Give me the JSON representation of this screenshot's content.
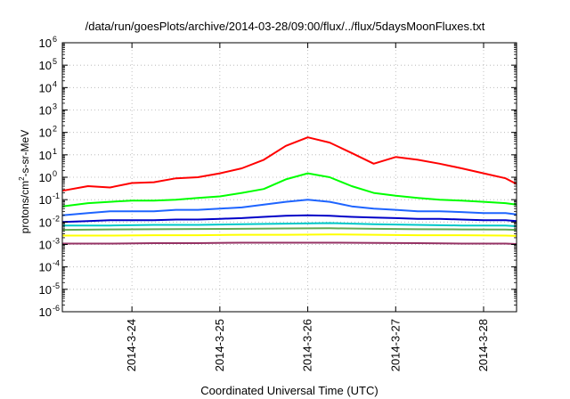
{
  "chart_data": {
    "type": "line",
    "title": "/data/run/goesPlots/archive/2014-03-28/09:00/flux/../flux/5daysMoonFluxes.txt",
    "xlabel": "Coordinated Universal Time (UTC)",
    "ylabel": {
      "prefix": "protons/cm",
      "sup": "2",
      "suffix": "-s-sr-MeV"
    },
    "y_scale": "log",
    "ylim": [
      1e-06,
      1000000.0
    ],
    "xlim": [
      "2014-03-23 05:00",
      "2014-03-28 09:00"
    ],
    "x_ticks": [
      "2014-3-24",
      "2014-3-25",
      "2014-3-26",
      "2014-3-27",
      "2014-3-28"
    ],
    "y_ticks": [
      {
        "base": "10",
        "exp": "6"
      },
      {
        "base": "10",
        "exp": "5"
      },
      {
        "base": "10",
        "exp": "4"
      },
      {
        "base": "10",
        "exp": "3"
      },
      {
        "base": "10",
        "exp": "2"
      },
      {
        "base": "10",
        "exp": "1"
      },
      {
        "base": "10",
        "exp": "0"
      },
      {
        "base": "10",
        "exp": "-1"
      },
      {
        "base": "10",
        "exp": "-2"
      },
      {
        "base": "10",
        "exp": "-3"
      },
      {
        "base": "10",
        "exp": "-4"
      },
      {
        "base": "10",
        "exp": "-5"
      },
      {
        "base": "10",
        "exp": "-6"
      }
    ],
    "grid": true,
    "series": [
      {
        "color": "#ff0000",
        "values": [
          [
            "2014-03-23 05:00",
            0.25
          ],
          [
            "2014-03-23 12:00",
            0.4
          ],
          [
            "2014-03-23 18:00",
            0.35
          ],
          [
            "2014-03-24 00:00",
            0.55
          ],
          [
            "2014-03-24 06:00",
            0.6
          ],
          [
            "2014-03-24 12:00",
            0.9
          ],
          [
            "2014-03-24 18:00",
            1.0
          ],
          [
            "2014-03-25 00:00",
            1.5
          ],
          [
            "2014-03-25 06:00",
            2.5
          ],
          [
            "2014-03-25 12:00",
            6
          ],
          [
            "2014-03-25 18:00",
            25
          ],
          [
            "2014-03-26 00:00",
            60
          ],
          [
            "2014-03-26 06:00",
            35
          ],
          [
            "2014-03-26 12:00",
            12
          ],
          [
            "2014-03-26 18:00",
            4
          ],
          [
            "2014-03-27 00:00",
            8
          ],
          [
            "2014-03-27 06:00",
            6
          ],
          [
            "2014-03-27 12:00",
            4
          ],
          [
            "2014-03-27 18:00",
            2.5
          ],
          [
            "2014-03-28 00:00",
            1.5
          ],
          [
            "2014-03-28 06:00",
            0.9
          ],
          [
            "2014-03-28 09:00",
            0.5
          ]
        ]
      },
      {
        "color": "#00ff00",
        "values": [
          [
            "2014-03-23 05:00",
            0.05
          ],
          [
            "2014-03-23 12:00",
            0.07
          ],
          [
            "2014-03-23 18:00",
            0.08
          ],
          [
            "2014-03-24 00:00",
            0.09
          ],
          [
            "2014-03-24 06:00",
            0.09
          ],
          [
            "2014-03-24 12:00",
            0.1
          ],
          [
            "2014-03-24 18:00",
            0.12
          ],
          [
            "2014-03-25 00:00",
            0.14
          ],
          [
            "2014-03-25 06:00",
            0.2
          ],
          [
            "2014-03-25 12:00",
            0.3
          ],
          [
            "2014-03-25 18:00",
            0.8
          ],
          [
            "2014-03-26 00:00",
            1.5
          ],
          [
            "2014-03-26 06:00",
            1.0
          ],
          [
            "2014-03-26 12:00",
            0.4
          ],
          [
            "2014-03-26 18:00",
            0.2
          ],
          [
            "2014-03-27 00:00",
            0.15
          ],
          [
            "2014-03-27 06:00",
            0.12
          ],
          [
            "2014-03-27 12:00",
            0.1
          ],
          [
            "2014-03-27 18:00",
            0.09
          ],
          [
            "2014-03-28 00:00",
            0.08
          ],
          [
            "2014-03-28 06:00",
            0.07
          ],
          [
            "2014-03-28 09:00",
            0.06
          ]
        ]
      },
      {
        "color": "#1e64ff",
        "values": [
          [
            "2014-03-23 05:00",
            0.02
          ],
          [
            "2014-03-23 12:00",
            0.025
          ],
          [
            "2014-03-23 18:00",
            0.03
          ],
          [
            "2014-03-24 00:00",
            0.03
          ],
          [
            "2014-03-24 06:00",
            0.03
          ],
          [
            "2014-03-24 12:00",
            0.035
          ],
          [
            "2014-03-24 18:00",
            0.035
          ],
          [
            "2014-03-25 00:00",
            0.04
          ],
          [
            "2014-03-25 06:00",
            0.045
          ],
          [
            "2014-03-25 12:00",
            0.06
          ],
          [
            "2014-03-25 18:00",
            0.08
          ],
          [
            "2014-03-26 00:00",
            0.1
          ],
          [
            "2014-03-26 06:00",
            0.08
          ],
          [
            "2014-03-26 12:00",
            0.05
          ],
          [
            "2014-03-26 18:00",
            0.04
          ],
          [
            "2014-03-27 00:00",
            0.035
          ],
          [
            "2014-03-27 06:00",
            0.03
          ],
          [
            "2014-03-27 12:00",
            0.03
          ],
          [
            "2014-03-27 18:00",
            0.028
          ],
          [
            "2014-03-28 00:00",
            0.025
          ],
          [
            "2014-03-28 06:00",
            0.025
          ],
          [
            "2014-03-28 09:00",
            0.022
          ]
        ]
      },
      {
        "color": "#0000c8",
        "values": [
          [
            "2014-03-23 05:00",
            0.01
          ],
          [
            "2014-03-23 12:00",
            0.011
          ],
          [
            "2014-03-23 18:00",
            0.012
          ],
          [
            "2014-03-24 00:00",
            0.012
          ],
          [
            "2014-03-24 06:00",
            0.012
          ],
          [
            "2014-03-24 12:00",
            0.013
          ],
          [
            "2014-03-24 18:00",
            0.013
          ],
          [
            "2014-03-25 00:00",
            0.014
          ],
          [
            "2014-03-25 06:00",
            0.015
          ],
          [
            "2014-03-25 12:00",
            0.017
          ],
          [
            "2014-03-25 18:00",
            0.019
          ],
          [
            "2014-03-26 00:00",
            0.02
          ],
          [
            "2014-03-26 06:00",
            0.019
          ],
          [
            "2014-03-26 12:00",
            0.017
          ],
          [
            "2014-03-26 18:00",
            0.016
          ],
          [
            "2014-03-27 00:00",
            0.015
          ],
          [
            "2014-03-27 06:00",
            0.014
          ],
          [
            "2014-03-27 12:00",
            0.014
          ],
          [
            "2014-03-27 18:00",
            0.013
          ],
          [
            "2014-03-28 00:00",
            0.012
          ],
          [
            "2014-03-28 06:00",
            0.012
          ],
          [
            "2014-03-28 09:00",
            0.011
          ]
        ]
      },
      {
        "color": "#00c8c8",
        "values": [
          [
            "2014-03-23 05:00",
            0.007
          ],
          [
            "2014-03-23 18:00",
            0.007
          ],
          [
            "2014-03-24 06:00",
            0.0075
          ],
          [
            "2014-03-24 18:00",
            0.0075
          ],
          [
            "2014-03-25 06:00",
            0.008
          ],
          [
            "2014-03-25 18:00",
            0.0085
          ],
          [
            "2014-03-26 06:00",
            0.009
          ],
          [
            "2014-03-26 18:00",
            0.008
          ],
          [
            "2014-03-27 06:00",
            0.0075
          ],
          [
            "2014-03-27 18:00",
            0.007
          ],
          [
            "2014-03-28 06:00",
            0.007
          ],
          [
            "2014-03-28 09:00",
            0.0065
          ]
        ]
      },
      {
        "color": "#64aa50",
        "values": [
          [
            "2014-03-23 05:00",
            0.0045
          ],
          [
            "2014-03-23 18:00",
            0.0047
          ],
          [
            "2014-03-24 06:00",
            0.0048
          ],
          [
            "2014-03-24 18:00",
            0.0049
          ],
          [
            "2014-03-25 06:00",
            0.005
          ],
          [
            "2014-03-25 18:00",
            0.0052
          ],
          [
            "2014-03-26 06:00",
            0.0053
          ],
          [
            "2014-03-26 18:00",
            0.005
          ],
          [
            "2014-03-27 06:00",
            0.0048
          ],
          [
            "2014-03-27 18:00",
            0.0047
          ],
          [
            "2014-03-28 06:00",
            0.0046
          ],
          [
            "2014-03-28 09:00",
            0.0045
          ]
        ]
      },
      {
        "color": "#ffff00",
        "values": [
          [
            "2014-03-23 05:00",
            0.0025
          ],
          [
            "2014-03-23 18:00",
            0.0025
          ],
          [
            "2014-03-24 06:00",
            0.0026
          ],
          [
            "2014-03-24 18:00",
            0.0026
          ],
          [
            "2014-03-25 06:00",
            0.0027
          ],
          [
            "2014-03-25 18:00",
            0.0027
          ],
          [
            "2014-03-26 06:00",
            0.0028
          ],
          [
            "2014-03-26 18:00",
            0.0027
          ],
          [
            "2014-03-27 06:00",
            0.0026
          ],
          [
            "2014-03-27 18:00",
            0.0026
          ],
          [
            "2014-03-28 06:00",
            0.0025
          ],
          [
            "2014-03-28 09:00",
            0.0024
          ]
        ]
      },
      {
        "color": "#963264",
        "values": [
          [
            "2014-03-23 05:00",
            0.0011
          ],
          [
            "2014-03-23 18:00",
            0.0011
          ],
          [
            "2014-03-24 06:00",
            0.00115
          ],
          [
            "2014-03-24 18:00",
            0.00115
          ],
          [
            "2014-03-25 06:00",
            0.0012
          ],
          [
            "2014-03-25 18:00",
            0.0012
          ],
          [
            "2014-03-26 06:00",
            0.0012
          ],
          [
            "2014-03-26 18:00",
            0.00118
          ],
          [
            "2014-03-27 06:00",
            0.00115
          ],
          [
            "2014-03-27 18:00",
            0.0011
          ],
          [
            "2014-03-28 06:00",
            0.0011
          ],
          [
            "2014-03-28 09:00",
            0.00105
          ]
        ]
      }
    ]
  }
}
